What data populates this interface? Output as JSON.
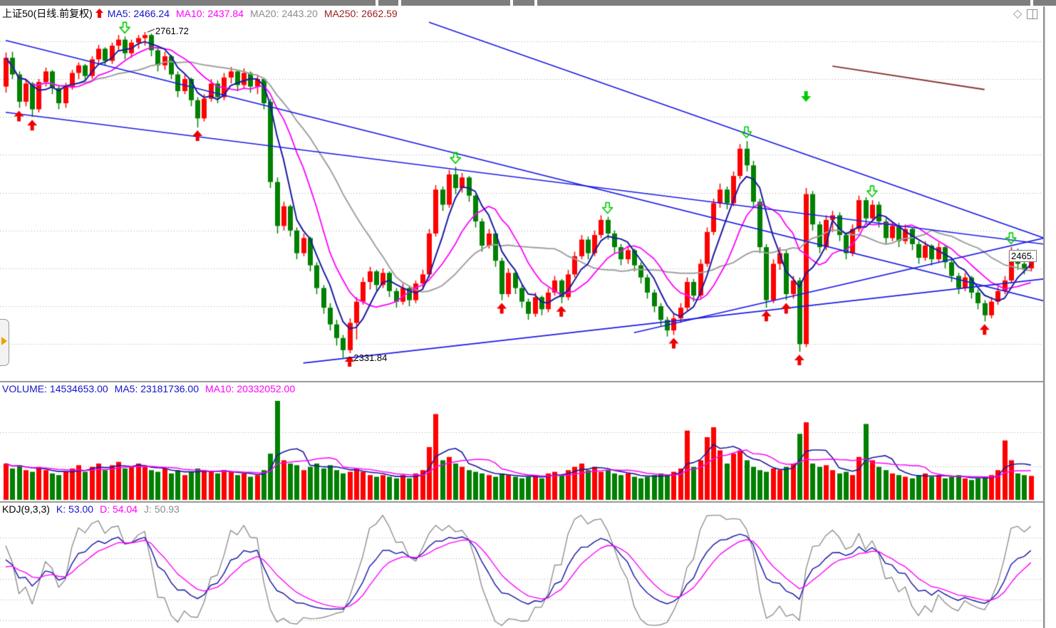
{
  "colors": {
    "up": "#ff0000",
    "down": "#008000",
    "ma5": "#1a1aa0",
    "ma10": "#ff00ff",
    "ma20": "#a0a0a0",
    "ma250": "#8b3030",
    "trendline": "#1a1ae6",
    "grid": "#a8a8a8",
    "kdj_k": "#2020a8",
    "kdj_d": "#ff00ff",
    "kdj_j": "#909090",
    "buy_marker": "#ee0000",
    "sell_marker": "#00cc00",
    "header_blue": "#1414cc",
    "header_magenta": "#ff00ff",
    "header_gray": "#8c8c8c",
    "header_darkred": "#a02020"
  },
  "window": {
    "icons": [
      {
        "name": "diamond-icon",
        "glyph": "◇"
      },
      {
        "name": "split-window-icon"
      }
    ]
  },
  "header": {
    "title": "上证50(日线.前复权)",
    "signal_arrow": "up",
    "mas": [
      {
        "label": "MA5:",
        "value": "2466.24"
      },
      {
        "label": "MA10:",
        "value": "2437.84"
      },
      {
        "label": "MA20:",
        "value": "2443.20"
      },
      {
        "label": "MA250:",
        "value": "2662.59"
      }
    ]
  },
  "volume_header": {
    "items": [
      {
        "label": "VOLUME:",
        "value": "14534653.00"
      },
      {
        "label": "MA5:",
        "value": "23181736.00"
      },
      {
        "label": "MA10:",
        "value": "20332052.00"
      }
    ]
  },
  "kdj_header": {
    "title": "KDJ(9,3,3)",
    "items": [
      {
        "label": "K:",
        "value": "53.00"
      },
      {
        "label": "D:",
        "value": "54.04"
      },
      {
        "label": "J:",
        "value": "50.93"
      }
    ]
  },
  "annotations": {
    "peak_label": "2761.72",
    "trough_label": "2331.84",
    "last_price_tag": "2465."
  },
  "chart_data": {
    "type": "candlestick",
    "title": "上证50 daily with MA5/MA10/MA20/MA250, VOLUME and KDJ(9,3,3) panes",
    "ylim": [
      2307,
      2778
    ],
    "gridline_prices": [
      2750,
      2700,
      2650,
      2600,
      2550,
      2500,
      2450,
      2400,
      2350
    ],
    "candles": [
      [
        2690,
        2735,
        2682,
        2728
      ],
      [
        2728,
        2736,
        2700,
        2706
      ],
      [
        2706,
        2710,
        2662,
        2670
      ],
      [
        2670,
        2700,
        2664,
        2694
      ],
      [
        2694,
        2696,
        2650,
        2660
      ],
      [
        2660,
        2700,
        2656,
        2696
      ],
      [
        2696,
        2715,
        2690,
        2710
      ],
      [
        2710,
        2712,
        2680,
        2688
      ],
      [
        2688,
        2692,
        2660,
        2668
      ],
      [
        2668,
        2695,
        2662,
        2690
      ],
      [
        2690,
        2712,
        2686,
        2708
      ],
      [
        2708,
        2722,
        2700,
        2718
      ],
      [
        2718,
        2720,
        2698,
        2704
      ],
      [
        2704,
        2730,
        2700,
        2726
      ],
      [
        2726,
        2745,
        2720,
        2740
      ],
      [
        2740,
        2742,
        2718,
        2724
      ],
      [
        2724,
        2748,
        2720,
        2744
      ],
      [
        2744,
        2758,
        2738,
        2752
      ],
      [
        2752,
        2756,
        2726,
        2734
      ],
      [
        2734,
        2752,
        2728,
        2748
      ],
      [
        2748,
        2758,
        2740,
        2754
      ],
      [
        2754,
        2762,
        2744,
        2758
      ],
      [
        2758,
        2760,
        2730,
        2738
      ],
      [
        2738,
        2742,
        2710,
        2718
      ],
      [
        2718,
        2736,
        2712,
        2730
      ],
      [
        2730,
        2732,
        2700,
        2706
      ],
      [
        2706,
        2710,
        2676,
        2684
      ],
      [
        2684,
        2706,
        2680,
        2700
      ],
      [
        2700,
        2702,
        2664,
        2672
      ],
      [
        2672,
        2676,
        2636,
        2648
      ],
      [
        2648,
        2680,
        2644,
        2674
      ],
      [
        2674,
        2700,
        2670,
        2694
      ],
      [
        2694,
        2698,
        2668,
        2676
      ],
      [
        2676,
        2708,
        2672,
        2702
      ],
      [
        2702,
        2716,
        2694,
        2710
      ],
      [
        2710,
        2712,
        2684,
        2692
      ],
      [
        2692,
        2714,
        2688,
        2708
      ],
      [
        2708,
        2710,
        2682,
        2690
      ],
      [
        2690,
        2706,
        2680,
        2700
      ],
      [
        2700,
        2702,
        2660,
        2668
      ],
      [
        2670,
        2674,
        2556,
        2564
      ],
      [
        2564,
        2570,
        2496,
        2506
      ],
      [
        2506,
        2538,
        2500,
        2532
      ],
      [
        2532,
        2534,
        2492,
        2500
      ],
      [
        2500,
        2504,
        2462,
        2470
      ],
      [
        2470,
        2496,
        2466,
        2490
      ],
      [
        2490,
        2492,
        2446,
        2454
      ],
      [
        2454,
        2458,
        2416,
        2424
      ],
      [
        2424,
        2428,
        2390,
        2398
      ],
      [
        2398,
        2404,
        2368,
        2376
      ],
      [
        2376,
        2382,
        2348,
        2358
      ],
      [
        2358,
        2362,
        2332,
        2342
      ],
      [
        2342,
        2384,
        2338,
        2378
      ],
      [
        2378,
        2412,
        2356,
        2406
      ],
      [
        2406,
        2438,
        2402,
        2432
      ],
      [
        2432,
        2452,
        2422,
        2446
      ],
      [
        2446,
        2448,
        2420,
        2428
      ],
      [
        2428,
        2450,
        2424,
        2444
      ],
      [
        2444,
        2446,
        2412,
        2420
      ],
      [
        2420,
        2424,
        2398,
        2406
      ],
      [
        2406,
        2430,
        2402,
        2424
      ],
      [
        2424,
        2426,
        2400,
        2408
      ],
      [
        2408,
        2434,
        2404,
        2430
      ],
      [
        2430,
        2448,
        2422,
        2442
      ],
      [
        2442,
        2502,
        2438,
        2496
      ],
      [
        2496,
        2560,
        2492,
        2554
      ],
      [
        2554,
        2558,
        2526,
        2534
      ],
      [
        2534,
        2580,
        2530,
        2574
      ],
      [
        2574,
        2584,
        2548,
        2556
      ],
      [
        2556,
        2576,
        2550,
        2570
      ],
      [
        2570,
        2572,
        2538,
        2546
      ],
      [
        2546,
        2548,
        2504,
        2512
      ],
      [
        2512,
        2516,
        2472,
        2480
      ],
      [
        2480,
        2502,
        2476,
        2496
      ],
      [
        2496,
        2498,
        2452,
        2460
      ],
      [
        2460,
        2464,
        2408,
        2416
      ],
      [
        2416,
        2450,
        2412,
        2444
      ],
      [
        2444,
        2446,
        2416,
        2424
      ],
      [
        2424,
        2428,
        2398,
        2406
      ],
      [
        2406,
        2410,
        2382,
        2390
      ],
      [
        2390,
        2418,
        2386,
        2412
      ],
      [
        2412,
        2414,
        2388,
        2396
      ],
      [
        2396,
        2424,
        2392,
        2418
      ],
      [
        2418,
        2440,
        2414,
        2434
      ],
      [
        2434,
        2436,
        2404,
        2412
      ],
      [
        2412,
        2448,
        2408,
        2442
      ],
      [
        2442,
        2472,
        2438,
        2466
      ],
      [
        2466,
        2494,
        2462,
        2488
      ],
      [
        2488,
        2492,
        2462,
        2470
      ],
      [
        2470,
        2500,
        2466,
        2494
      ],
      [
        2494,
        2520,
        2490,
        2514
      ],
      [
        2514,
        2518,
        2488,
        2496
      ],
      [
        2496,
        2500,
        2470,
        2478
      ],
      [
        2478,
        2482,
        2454,
        2462
      ],
      [
        2462,
        2480,
        2456,
        2474
      ],
      [
        2474,
        2476,
        2446,
        2454
      ],
      [
        2454,
        2458,
        2430,
        2438
      ],
      [
        2438,
        2442,
        2410,
        2418
      ],
      [
        2418,
        2422,
        2392,
        2400
      ],
      [
        2400,
        2404,
        2374,
        2382
      ],
      [
        2382,
        2386,
        2360,
        2368
      ],
      [
        2368,
        2390,
        2362,
        2384
      ],
      [
        2384,
        2404,
        2378,
        2398
      ],
      [
        2398,
        2438,
        2394,
        2432
      ],
      [
        2432,
        2436,
        2406,
        2414
      ],
      [
        2414,
        2462,
        2410,
        2456
      ],
      [
        2456,
        2504,
        2452,
        2498
      ],
      [
        2498,
        2542,
        2494,
        2536
      ],
      [
        2536,
        2562,
        2530,
        2554
      ],
      [
        2554,
        2558,
        2528,
        2536
      ],
      [
        2536,
        2578,
        2532,
        2572
      ],
      [
        2572,
        2614,
        2568,
        2608
      ],
      [
        2608,
        2618,
        2578,
        2586
      ],
      [
        2586,
        2592,
        2530,
        2538
      ],
      [
        2538,
        2542,
        2470,
        2478
      ],
      [
        2478,
        2482,
        2398,
        2408
      ],
      [
        2408,
        2462,
        2404,
        2456
      ],
      [
        2456,
        2478,
        2448,
        2470
      ],
      [
        2470,
        2474,
        2408,
        2416
      ],
      [
        2416,
        2440,
        2410,
        2434
      ],
      [
        2434,
        2438,
        2340,
        2350
      ],
      [
        2350,
        2556,
        2346,
        2548
      ],
      [
        2548,
        2552,
        2500,
        2508
      ],
      [
        2508,
        2512,
        2470,
        2478
      ],
      [
        2478,
        2520,
        2474,
        2514
      ],
      [
        2514,
        2526,
        2498,
        2520
      ],
      [
        2520,
        2524,
        2486,
        2494
      ],
      [
        2494,
        2498,
        2462,
        2470
      ],
      [
        2470,
        2508,
        2466,
        2502
      ],
      [
        2502,
        2546,
        2498,
        2540
      ],
      [
        2540,
        2544,
        2508,
        2516
      ],
      [
        2516,
        2540,
        2512,
        2534
      ],
      [
        2534,
        2538,
        2504,
        2512
      ],
      [
        2512,
        2516,
        2482,
        2490
      ],
      [
        2490,
        2512,
        2486,
        2506
      ],
      [
        2506,
        2510,
        2478,
        2486
      ],
      [
        2486,
        2508,
        2482,
        2502
      ],
      [
        2502,
        2504,
        2474,
        2482
      ],
      [
        2482,
        2486,
        2456,
        2464
      ],
      [
        2464,
        2486,
        2460,
        2480
      ],
      [
        2480,
        2482,
        2454,
        2462
      ],
      [
        2462,
        2484,
        2458,
        2478
      ],
      [
        2478,
        2480,
        2450,
        2458
      ],
      [
        2458,
        2462,
        2432,
        2440
      ],
      [
        2440,
        2444,
        2416,
        2424
      ],
      [
        2424,
        2444,
        2420,
        2438
      ],
      [
        2438,
        2440,
        2410,
        2418
      ],
      [
        2418,
        2422,
        2396,
        2404
      ],
      [
        2404,
        2408,
        2380,
        2388
      ],
      [
        2388,
        2412,
        2384,
        2406
      ],
      [
        2406,
        2426,
        2402,
        2420
      ],
      [
        2420,
        2440,
        2416,
        2434
      ],
      [
        2434,
        2478,
        2430,
        2472
      ],
      [
        2472,
        2476,
        2448,
        2456
      ],
      [
        2456,
        2460,
        2442,
        2450
      ],
      [
        2450,
        2468,
        2446,
        2465
      ]
    ],
    "volumes_millions": [
      22,
      19,
      21,
      18,
      17,
      20,
      18,
      16,
      15,
      17,
      19,
      21,
      17,
      20,
      22,
      18,
      21,
      23,
      19,
      20,
      22,
      20,
      18,
      17,
      19,
      16,
      18,
      15,
      17,
      19,
      18,
      17,
      16,
      18,
      17,
      15,
      16,
      14,
      15,
      18,
      28,
      60,
      24,
      22,
      21,
      18,
      20,
      22,
      19,
      21,
      18,
      16,
      17,
      19,
      17,
      15,
      14,
      15,
      14,
      13,
      15,
      13,
      16,
      18,
      32,
      52,
      24,
      26,
      22,
      20,
      18,
      17,
      16,
      15,
      14,
      16,
      15,
      14,
      13,
      14,
      15,
      13,
      16,
      17,
      15,
      18,
      20,
      22,
      18,
      20,
      17,
      18,
      16,
      15,
      16,
      14,
      13,
      14,
      15,
      16,
      15,
      17,
      19,
      42,
      20,
      24,
      38,
      44,
      30,
      22,
      28,
      30,
      24,
      20,
      18,
      17,
      19,
      18,
      20,
      22,
      40,
      47,
      22,
      20,
      21,
      18,
      16,
      17,
      15,
      26,
      46,
      24,
      20,
      18,
      16,
      15,
      14,
      13,
      15,
      16,
      14,
      15,
      13,
      14,
      15,
      13,
      12,
      13,
      14,
      15,
      18,
      36,
      24,
      16,
      15,
      14.5
    ],
    "volume_gridlines_millions": [
      41,
      20.5
    ],
    "kdj_gridlines": [
      88,
      64,
      40,
      16,
      -8
    ],
    "indicators": {
      "price_ma_periods": [
        5,
        10,
        20
      ],
      "volume_ma_periods": [
        5,
        10
      ],
      "kdj_params": [
        9,
        3,
        3
      ]
    },
    "ma250_segment": {
      "from_index": 125,
      "from_price": 2717,
      "to_index": 148,
      "to_price": 2686
    },
    "trendlines": [
      {
        "from": [
          0,
          2751
        ],
        "to": [
          157,
          2407
        ]
      },
      {
        "from": [
          0,
          2656
        ],
        "to": [
          157,
          2482
        ]
      },
      {
        "from": [
          64,
          2775
        ],
        "to": [
          157,
          2490
        ]
      },
      {
        "from": [
          45,
          2325
        ],
        "to": [
          157,
          2436
        ]
      },
      {
        "from": [
          95,
          2365
        ],
        "to": [
          157,
          2490
        ]
      }
    ],
    "markers": {
      "buy_indices": [
        2,
        4,
        29,
        52,
        75,
        84,
        101,
        115,
        118,
        120,
        148
      ],
      "sell_hollow_indices": [
        18,
        68,
        91,
        112,
        131,
        152
      ],
      "sell_filled": [
        {
          "index": 121,
          "price": 2670
        }
      ]
    },
    "peak": {
      "index": 21,
      "price": 2762
    },
    "trough": {
      "index": 51,
      "price": 2332
    },
    "last_close": 2465
  }
}
